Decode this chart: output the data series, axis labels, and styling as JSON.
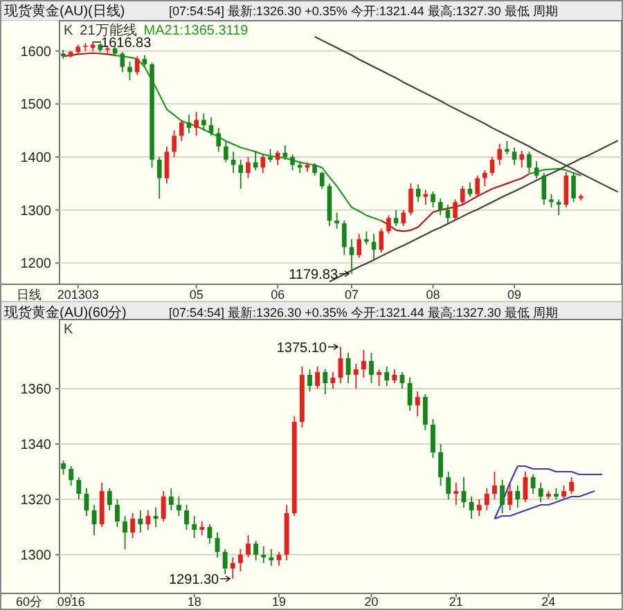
{
  "chart_data": [
    {
      "type": "candlestick",
      "title": "现货黄金(AU)(日线)",
      "subtitle": "[07:54:54] 最新:1326.30 +0.35% 今开:1321.44 最高:1327.30 最低 周期",
      "xlabel": "日线",
      "categories": [
        null,
        null,
        "201303",
        null,
        null,
        null,
        null,
        null,
        null,
        null,
        null,
        null,
        null,
        null,
        null,
        null,
        null,
        null,
        "05",
        null,
        null,
        null,
        null,
        null,
        null,
        null,
        null,
        null,
        null,
        "06",
        null,
        null,
        null,
        null,
        null,
        null,
        null,
        null,
        null,
        "07",
        null,
        null,
        null,
        null,
        null,
        null,
        null,
        null,
        null,
        null,
        "08",
        null,
        null,
        null,
        null,
        null,
        null,
        null,
        null,
        null,
        null,
        "09",
        null,
        null,
        null,
        null,
        null,
        null,
        null,
        null,
        null,
        null,
        null,
        null,
        null,
        null
      ],
      "ohlc": [
        [
          1595,
          1602,
          1585,
          1590
        ],
        [
          1590,
          1600,
          1588,
          1598
        ],
        [
          1598,
          1612,
          1595,
          1608
        ],
        [
          1608,
          1615,
          1600,
          1610
        ],
        [
          1606,
          1616.83,
          1600,
          1612
        ],
        [
          1612,
          1614,
          1598,
          1602
        ],
        [
          1602,
          1610,
          1596,
          1605
        ],
        [
          1605,
          1608,
          1590,
          1595
        ],
        [
          1595,
          1598,
          1560,
          1570
        ],
        [
          1570,
          1580,
          1545,
          1560
        ],
        [
          1560,
          1590,
          1555,
          1585
        ],
        [
          1585,
          1592,
          1570,
          1575
        ],
        [
          1575,
          1578,
          1380,
          1395
        ],
        [
          1395,
          1400,
          1321,
          1360
        ],
        [
          1360,
          1420,
          1350,
          1410
        ],
        [
          1410,
          1450,
          1400,
          1440
        ],
        [
          1440,
          1470,
          1430,
          1465
        ],
        [
          1465,
          1480,
          1445,
          1455
        ],
        [
          1455,
          1485,
          1440,
          1470
        ],
        [
          1470,
          1482,
          1450,
          1460
        ],
        [
          1460,
          1475,
          1440,
          1445
        ],
        [
          1445,
          1455,
          1410,
          1420
        ],
        [
          1420,
          1430,
          1390,
          1395
        ],
        [
          1395,
          1410,
          1370,
          1385
        ],
        [
          1385,
          1395,
          1340,
          1370
        ],
        [
          1370,
          1400,
          1360,
          1390
        ],
        [
          1390,
          1410,
          1375,
          1380
        ],
        [
          1380,
          1405,
          1370,
          1400
        ],
        [
          1400,
          1415,
          1390,
          1395
        ],
        [
          1395,
          1412,
          1385,
          1408
        ],
        [
          1408,
          1422,
          1395,
          1400
        ],
        [
          1400,
          1405,
          1375,
          1385
        ],
        [
          1385,
          1392,
          1370,
          1380
        ],
        [
          1380,
          1390,
          1372,
          1385
        ],
        [
          1385,
          1388,
          1365,
          1370
        ],
        [
          1370,
          1372,
          1340,
          1345
        ],
        [
          1345,
          1350,
          1270,
          1280
        ],
        [
          1280,
          1295,
          1265,
          1275
        ],
        [
          1275,
          1280,
          1215,
          1230
        ],
        [
          1230,
          1245,
          1179.83,
          1215
        ],
        [
          1215,
          1255,
          1210,
          1245
        ],
        [
          1245,
          1260,
          1235,
          1240
        ],
        [
          1240,
          1255,
          1205,
          1225
        ],
        [
          1225,
          1265,
          1220,
          1260
        ],
        [
          1260,
          1290,
          1255,
          1285
        ],
        [
          1285,
          1300,
          1270,
          1275
        ],
        [
          1275,
          1300,
          1270,
          1295
        ],
        [
          1295,
          1350,
          1290,
          1340
        ],
        [
          1340,
          1348,
          1315,
          1325
        ],
        [
          1325,
          1338,
          1310,
          1330
        ],
        [
          1330,
          1335,
          1305,
          1315
        ],
        [
          1315,
          1322,
          1290,
          1300
        ],
        [
          1300,
          1310,
          1275,
          1285
        ],
        [
          1285,
          1320,
          1280,
          1315
        ],
        [
          1315,
          1345,
          1310,
          1340
        ],
        [
          1340,
          1352,
          1325,
          1330
        ],
        [
          1330,
          1365,
          1325,
          1360
        ],
        [
          1360,
          1375,
          1345,
          1370
        ],
        [
          1370,
          1400,
          1365,
          1395
        ],
        [
          1395,
          1425,
          1385,
          1415
        ],
        [
          1415,
          1430,
          1405,
          1410
        ],
        [
          1410,
          1418,
          1385,
          1395
        ],
        [
          1395,
          1412,
          1380,
          1405
        ],
        [
          1405,
          1410,
          1370,
          1380
        ],
        [
          1380,
          1392,
          1360,
          1365
        ],
        [
          1365,
          1370,
          1310,
          1320
        ],
        [
          1320,
          1330,
          1305,
          1315
        ],
        [
          1315,
          1320,
          1290,
          1310
        ],
        [
          1310,
          1372,
          1305,
          1365
        ],
        [
          1365,
          1370,
          1315,
          1322
        ],
        [
          1322,
          1330,
          1318,
          1326.3
        ],
        null,
        null,
        null,
        null,
        null
      ],
      "series": [
        {
          "type": "line",
          "color": "#b01818",
          "values": [
            1590,
            1592,
            1594,
            1595,
            1596,
            1595,
            1594,
            1592,
            null,
            null,
            null,
            null,
            null,
            null,
            null,
            null,
            null,
            null,
            null,
            null,
            null,
            null,
            null,
            null,
            null,
            null,
            null,
            null,
            null,
            null,
            null,
            null,
            null,
            null,
            null,
            null,
            null,
            null,
            null,
            null,
            null,
            null,
            null,
            1280,
            1272,
            1262,
            1260,
            1262,
            1268,
            1282,
            1296,
            1300,
            1303,
            1306,
            1310,
            1318,
            1326,
            1333,
            1340,
            1345,
            1350,
            1355,
            1360,
            1368,
            null,
            null,
            null,
            null,
            null,
            null,
            null,
            null,
            null,
            null,
            null,
            null
          ]
        },
        {
          "type": "line",
          "name": "MA21:1365.3119",
          "color": "#1e9a1e",
          "values": [
            null,
            null,
            null,
            null,
            null,
            null,
            null,
            1592,
            1590,
            1588,
            1585,
            1570,
            1545,
            1518,
            1490,
            1479,
            1468,
            1463,
            1458,
            1452,
            1445,
            1438,
            1430,
            1424,
            1418,
            1414,
            1410,
            1405,
            1402,
            1400,
            1398,
            1394,
            1390,
            1387,
            1385,
            1380,
            1362,
            1345,
            1325,
            1305,
            1298,
            1290,
            1285,
            1280,
            null,
            null,
            null,
            null,
            null,
            null,
            null,
            null,
            null,
            null,
            null,
            null,
            null,
            null,
            null,
            null,
            null,
            null,
            null,
            1368,
            1372,
            1376,
            1377,
            1378,
            1375,
            1370,
            1365,
            null,
            null,
            null,
            null,
            null
          ]
        },
        {
          "type": "line",
          "color": "#404040",
          "values": [
            null,
            null,
            null,
            null,
            null,
            null,
            null,
            null,
            null,
            null,
            null,
            null,
            null,
            null,
            null,
            null,
            null,
            null,
            null,
            null,
            null,
            null,
            null,
            null,
            null,
            null,
            null,
            null,
            null,
            null,
            null,
            null,
            null,
            null,
            1627,
            1620,
            1613,
            1606,
            1599,
            1592,
            1584,
            1577,
            1570,
            1563,
            1556,
            1549,
            1541,
            1534,
            1527,
            1520,
            1513,
            1506,
            1498,
            1491,
            1484,
            1477,
            1470,
            1463,
            1455,
            1448,
            1441,
            1434,
            1427,
            1420,
            1412,
            1405,
            1398,
            1391,
            1384,
            1377,
            1369,
            1362,
            1355,
            1348,
            1341,
            1334
          ]
        },
        {
          "type": "line",
          "color": "#404040",
          "values": [
            null,
            null,
            null,
            null,
            null,
            null,
            null,
            null,
            null,
            null,
            null,
            null,
            null,
            null,
            null,
            null,
            null,
            null,
            null,
            null,
            null,
            null,
            null,
            null,
            null,
            null,
            null,
            null,
            null,
            null,
            null,
            null,
            null,
            null,
            null,
            null,
            1165,
            1172,
            1179,
            1186,
            1193,
            1199,
            1206,
            1213,
            1220,
            1227,
            1233,
            1240,
            1247,
            1254,
            1261,
            1267,
            1274,
            1281,
            1288,
            1295,
            1301,
            1308,
            1315,
            1322,
            1329,
            1335,
            1342,
            1349,
            1356,
            1363,
            1369,
            1376,
            1383,
            1390,
            1397,
            1403,
            1410,
            1417,
            1424,
            1431
          ]
        }
      ],
      "ylim": [
        1160,
        1657
      ],
      "yticks": [
        1200,
        1300,
        1400,
        1500,
        1600
      ],
      "grid": "y",
      "legend": "top left",
      "annotations": [
        "K",
        "21万能线",
        "1616.83",
        "1179.83"
      ]
    },
    {
      "type": "candlestick",
      "title": "现货黄金(AU)(60分)",
      "subtitle": "[07:54:54] 最新:1326.30 +0.35% 今开:1321.44 最高:1327.30 最低 周期",
      "xlabel": "60分",
      "categories": [
        null,
        "0916",
        null,
        null,
        null,
        null,
        null,
        null,
        null,
        null,
        null,
        null,
        null,
        null,
        null,
        null,
        null,
        "18",
        null,
        null,
        null,
        null,
        null,
        null,
        null,
        null,
        null,
        null,
        "19",
        null,
        null,
        null,
        null,
        null,
        null,
        null,
        null,
        null,
        null,
        null,
        "20",
        null,
        null,
        null,
        null,
        null,
        null,
        null,
        null,
        null,
        null,
        "21",
        null,
        null,
        null,
        null,
        null,
        null,
        null,
        null,
        null,
        null,
        null,
        "24",
        null,
        null,
        null,
        null,
        null,
        null,
        null,
        null,
        null
      ],
      "ohlc": [
        [
          1333,
          1334,
          1329,
          1331
        ],
        [
          1331,
          1332,
          1325,
          1327
        ],
        [
          1327,
          1328,
          1320,
          1322
        ],
        [
          1322,
          1324,
          1314,
          1316
        ],
        [
          1316,
          1318,
          1307,
          1311
        ],
        [
          1311,
          1326,
          1310,
          1323
        ],
        [
          1323,
          1324,
          1316,
          1318
        ],
        [
          1318,
          1320,
          1310,
          1312
        ],
        [
          1312,
          1314,
          1302,
          1308
        ],
        [
          1308,
          1315,
          1306,
          1313
        ],
        [
          1313,
          1316,
          1308,
          1311
        ],
        [
          1311,
          1316,
          1309,
          1314
        ],
        [
          1314,
          1317,
          1310,
          1313
        ],
        [
          1313,
          1323,
          1312,
          1321
        ],
        [
          1321,
          1324,
          1316,
          1318
        ],
        [
          1318,
          1321,
          1314,
          1316
        ],
        [
          1316,
          1318,
          1309,
          1311
        ],
        [
          1311,
          1314,
          1306,
          1309
        ],
        [
          1309,
          1312,
          1307,
          1310
        ],
        [
          1310,
          1311,
          1304,
          1306
        ],
        [
          1306,
          1308,
          1299,
          1301
        ],
        [
          1301,
          1302,
          1293,
          1295
        ],
        [
          1295,
          1299,
          1291.3,
          1297
        ],
        [
          1297,
          1302,
          1294,
          1300
        ],
        [
          1300,
          1307,
          1299,
          1304
        ],
        [
          1304,
          1305,
          1298,
          1300
        ],
        [
          1300,
          1303,
          1297,
          1299
        ],
        [
          1299,
          1302,
          1296,
          1298
        ],
        [
          1298,
          1301,
          1296,
          1300
        ],
        [
          1300,
          1318,
          1298,
          1315
        ],
        [
          1315,
          1350,
          1314,
          1348
        ],
        [
          1348,
          1368,
          1346,
          1365
        ],
        [
          1365,
          1367,
          1359,
          1361
        ],
        [
          1361,
          1368,
          1360,
          1366
        ],
        [
          1366,
          1367,
          1358,
          1362
        ],
        [
          1362,
          1366,
          1360,
          1364
        ],
        [
          1364,
          1375.1,
          1362,
          1371
        ],
        [
          1371,
          1373,
          1362,
          1365
        ],
        [
          1365,
          1369,
          1360,
          1367
        ],
        [
          1367,
          1374,
          1364,
          1370
        ],
        [
          1370,
          1373,
          1362,
          1365
        ],
        [
          1365,
          1367,
          1361,
          1366
        ],
        [
          1366,
          1368,
          1361,
          1363
        ],
        [
          1363,
          1367,
          1362,
          1365
        ],
        [
          1365,
          1366,
          1360,
          1362
        ],
        [
          1362,
          1364,
          1352,
          1354
        ],
        [
          1354,
          1359,
          1350,
          1357
        ],
        [
          1357,
          1358,
          1345,
          1347
        ],
        [
          1347,
          1349,
          1335,
          1337
        ],
        [
          1337,
          1340,
          1325,
          1328
        ],
        [
          1328,
          1330,
          1320,
          1322
        ],
        [
          1322,
          1326,
          1318,
          1323
        ],
        [
          1323,
          1328,
          1317,
          1319
        ],
        [
          1319,
          1321,
          1313,
          1316
        ],
        [
          1316,
          1320,
          1314,
          1318
        ],
        [
          1318,
          1324,
          1316,
          1322
        ],
        [
          1322,
          1330,
          1320,
          1325
        ],
        [
          1325,
          1327,
          1315,
          1318
        ],
        [
          1318,
          1326,
          1316,
          1323
        ],
        [
          1323,
          1325,
          1317,
          1320
        ],
        [
          1320,
          1330,
          1319,
          1328
        ],
        [
          1328,
          1329,
          1322,
          1324
        ],
        [
          1324,
          1326,
          1319,
          1321
        ],
        [
          1321,
          1323,
          1320,
          1322
        ],
        [
          1322,
          1324,
          1320,
          1321
        ],
        [
          1321,
          1325,
          1320,
          1323
        ],
        [
          1323,
          1328,
          1322,
          1326.3
        ],
        null,
        null,
        null,
        null,
        null,
        null
      ],
      "series": [
        {
          "type": "line",
          "color": "#3838c8",
          "values": [
            null,
            null,
            null,
            null,
            null,
            null,
            null,
            null,
            null,
            null,
            null,
            null,
            null,
            null,
            null,
            null,
            null,
            null,
            null,
            null,
            null,
            null,
            null,
            null,
            null,
            null,
            null,
            null,
            null,
            null,
            null,
            null,
            null,
            null,
            null,
            null,
            null,
            null,
            null,
            null,
            null,
            null,
            null,
            null,
            null,
            null,
            null,
            null,
            null,
            null,
            null,
            null,
            null,
            null,
            null,
            null,
            null,
            null,
            null,
            1332,
            1332,
            1331,
            1331,
            1331,
            1330,
            1330,
            1330,
            1329,
            1329,
            1329,
            1329,
            null,
            null
          ]
        },
        {
          "type": "line",
          "color": "#3838c8",
          "values": [
            null,
            null,
            null,
            null,
            null,
            null,
            null,
            null,
            null,
            null,
            null,
            null,
            null,
            null,
            null,
            null,
            null,
            null,
            null,
            null,
            null,
            null,
            null,
            null,
            null,
            null,
            null,
            null,
            null,
            null,
            null,
            null,
            null,
            null,
            null,
            null,
            null,
            null,
            null,
            null,
            null,
            null,
            null,
            null,
            null,
            null,
            null,
            null,
            null,
            null,
            null,
            null,
            null,
            null,
            null,
            null,
            1313,
            1314,
            1314,
            1315,
            1316,
            1317,
            1318,
            1318,
            1319,
            1320,
            1321,
            1321,
            1322,
            1323,
            null,
            null,
            null
          ]
        },
        {
          "type": "line",
          "color": "#3838c8",
          "values": [
            null,
            null,
            null,
            null,
            null,
            null,
            null,
            null,
            null,
            null,
            null,
            null,
            null,
            null,
            null,
            null,
            null,
            null,
            null,
            null,
            null,
            null,
            null,
            null,
            null,
            null,
            null,
            null,
            null,
            null,
            null,
            null,
            null,
            null,
            null,
            null,
            null,
            null,
            null,
            null,
            null,
            null,
            null,
            null,
            null,
            null,
            null,
            null,
            null,
            null,
            null,
            null,
            null,
            null,
            null,
            null,
            1313,
            1319,
            1326,
            1332,
            null,
            null,
            null,
            null,
            null,
            null,
            null,
            null,
            null,
            null,
            null,
            null,
            null
          ]
        }
      ],
      "ylim": [
        1286,
        1385
      ],
      "yticks": [
        1300,
        1320,
        1340,
        1360
      ],
      "grid": "y",
      "annotations": [
        "K",
        "1375.10",
        "1291.30"
      ]
    }
  ]
}
